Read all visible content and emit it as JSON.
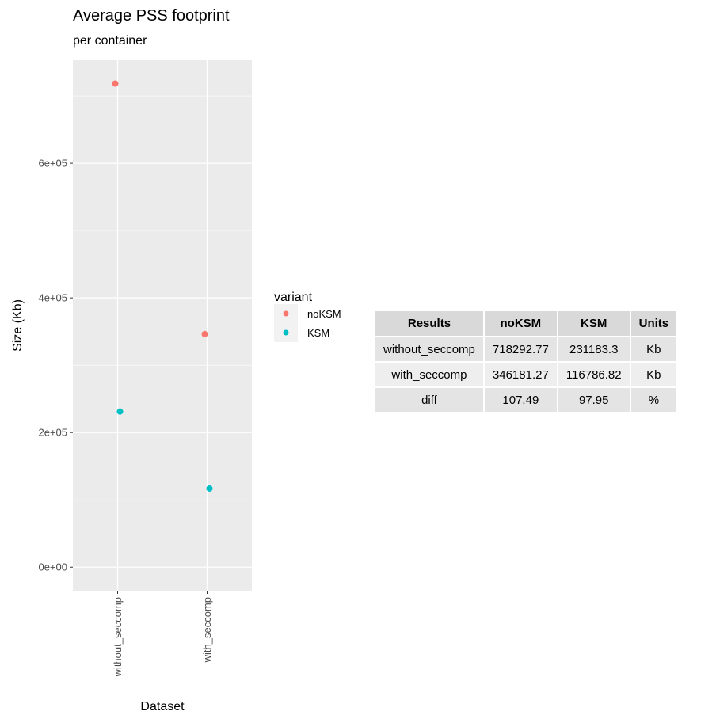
{
  "chart_data": {
    "type": "scatter",
    "title": "Average PSS footprint",
    "subtitle": "per container",
    "xlabel": "Dataset",
    "ylabel": "Size (Kb)",
    "categories": [
      "without_seccomp",
      "with_seccomp"
    ],
    "y_ticks": [
      0,
      200000,
      400000,
      600000
    ],
    "y_tick_labels": [
      "0e+00",
      "2e+05",
      "4e+05",
      "6e+05"
    ],
    "ylim": [
      -35000,
      753000
    ],
    "grid": true,
    "legend": {
      "title": "variant",
      "position": "right"
    },
    "series": [
      {
        "name": "noKSM",
        "color": "#F8766D",
        "values": [
          718292.77,
          346181.27
        ]
      },
      {
        "name": "KSM",
        "color": "#00BFC4",
        "values": [
          231183.3,
          116786.82
        ]
      }
    ]
  },
  "table": {
    "headers": [
      "Results",
      "noKSM",
      "KSM",
      "Units"
    ],
    "rows": [
      [
        "without_seccomp",
        "718292.77",
        "231183.3",
        "Kb"
      ],
      [
        "with_seccomp",
        "346181.27",
        "116786.82",
        "Kb"
      ],
      [
        "diff",
        "107.49",
        "97.95",
        "%"
      ]
    ]
  }
}
